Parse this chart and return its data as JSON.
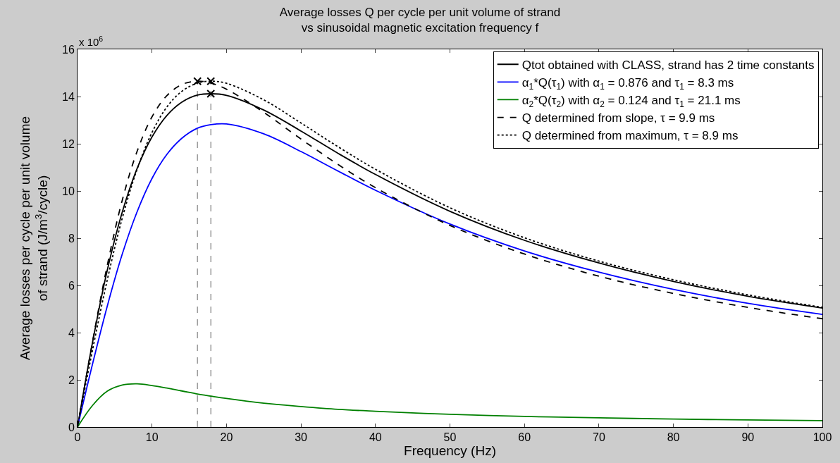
{
  "chart_data": {
    "type": "line",
    "title": "Average losses Q per cycle per unit volume of strand\nvs sinusoidal magnetic excitation frequency f",
    "xlabel": "Frequency (Hz)",
    "ylabel": "Average losses per cycle per unit volume\nof strand (J/m$^{3}$/cycle)",
    "x": [
      0,
      2,
      4,
      6,
      8,
      10,
      12,
      14,
      16.1,
      17.9,
      20,
      25,
      30,
      35,
      40,
      50,
      60,
      70,
      80,
      90,
      100
    ],
    "series": [
      {
        "name": "Qtot obtained with CLASS, strand has 2 time constants",
        "color": "#000000",
        "line_style": "solid",
        "values": [
          0,
          3.56,
          6.65,
          9.1,
          10.95,
          12.29,
          13.2,
          13.76,
          14.06,
          14.12,
          14.05,
          13.43,
          12.54,
          11.59,
          10.7,
          9.14,
          7.91,
          6.95,
          6.17,
          5.54,
          5.04
        ]
      },
      {
        "name": "α$_{1}$*Q(τ$_{1}$) with α$_{1}$ = 0.876 and τ$_{1}$ = 8.3 ms",
        "color": "#0000ff",
        "line_style": "solid",
        "values": [
          0,
          2.65,
          5.13,
          7.32,
          9.12,
          10.53,
          11.55,
          12.23,
          12.66,
          12.81,
          12.84,
          12.42,
          11.67,
          10.84,
          10.03,
          8.6,
          7.46,
          6.56,
          5.83,
          5.24,
          4.77
        ]
      },
      {
        "name": "α$_{2}$*Q(τ$_{2}$) with α$_{2}$ = 0.124 and τ$_{1}$ = 21.1 ms",
        "color": "#008000",
        "line_style": "solid",
        "values": [
          0,
          0.91,
          1.52,
          1.78,
          1.83,
          1.76,
          1.65,
          1.53,
          1.4,
          1.31,
          1.21,
          1.01,
          0.87,
          0.75,
          0.67,
          0.54,
          0.45,
          0.39,
          0.34,
          0.3,
          0.27
        ]
      },
      {
        "name": "Q determined from slope, τ = 9.9 ms",
        "color": "#000000",
        "line_style": "dashed",
        "values": [
          0,
          3.59,
          6.86,
          9.6,
          11.68,
          13.14,
          14.04,
          14.51,
          14.65,
          14.57,
          14.31,
          13.33,
          12.2,
          11.12,
          10.14,
          8.54,
          7.33,
          6.39,
          5.66,
          5.07,
          4.59
        ]
      },
      {
        "name": "Q determined from maximum, τ = 8.9 ms",
        "color": "#000000",
        "line_style": "dotted",
        "values": [
          0,
          3.24,
          6.24,
          8.84,
          10.92,
          12.48,
          13.56,
          14.22,
          14.57,
          14.65,
          14.56,
          13.86,
          12.88,
          11.87,
          10.92,
          9.29,
          8.02,
          7.03,
          6.24,
          5.6,
          5.07
        ]
      },
      {
        "type": "scatter",
        "marker": "cross",
        "color": "#000000",
        "values": [
          null,
          null,
          null,
          null,
          null,
          null,
          null,
          null,
          14.65,
          14.65,
          null,
          null,
          null,
          null,
          null,
          null,
          null,
          null,
          null,
          null,
          null
        ]
      },
      {
        "type": "scatter",
        "marker": "cross",
        "color": "#000000",
        "values": [
          null,
          null,
          null,
          null,
          null,
          null,
          null,
          null,
          null,
          14.12,
          null,
          null,
          null,
          null,
          null,
          null,
          null,
          null,
          null,
          null,
          null
        ]
      }
    ],
    "ref_lines": [
      {
        "axis": "x",
        "value": 16.1,
        "color": "#808080",
        "line_style": "dashed"
      },
      {
        "axis": "x",
        "value": 17.9,
        "color": "#808080",
        "line_style": "dashed"
      }
    ],
    "annotations": [
      "x 10$^{6}$"
    ],
    "xlim": [
      0,
      100
    ],
    "xticks": [
      0,
      10,
      20,
      30,
      40,
      50,
      60,
      70,
      80,
      90,
      100
    ],
    "ylim": [
      0,
      16
    ],
    "yticks": [
      0,
      2,
      4,
      6,
      8,
      10,
      12,
      14,
      16
    ],
    "grid": false,
    "legend": "top right",
    "marker": "none"
  }
}
